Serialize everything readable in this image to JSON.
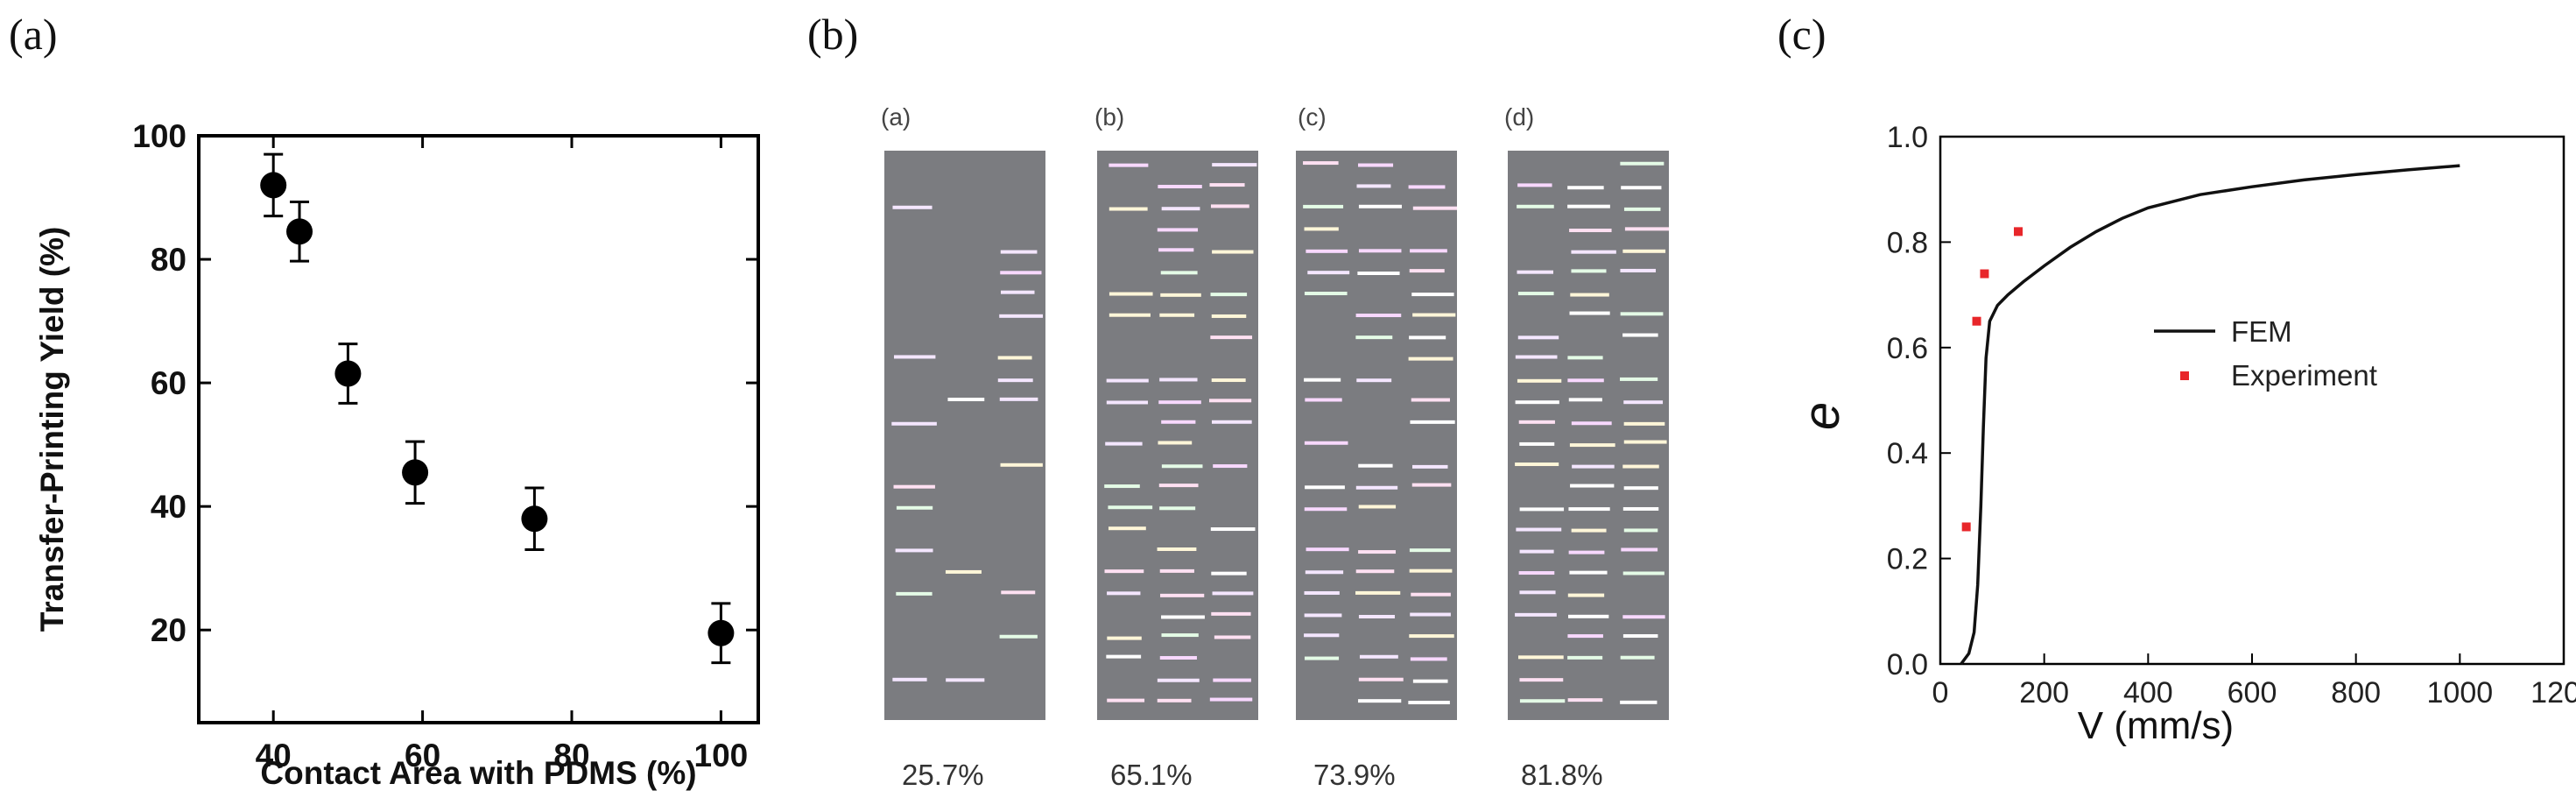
{
  "panel_letters": [
    "(a)",
    "(b)",
    "(c)"
  ],
  "chart_data": [
    {
      "type": "scatter",
      "title": "",
      "xlabel": "Contact Area with PDMS (%)",
      "ylabel": "Transfer-Printing Yield (%)",
      "xlim": [
        30,
        105
      ],
      "ylim": [
        5,
        100
      ],
      "xticks": [
        "40",
        "60",
        "80",
        "100"
      ],
      "yticks": [
        "20",
        "40",
        "60",
        "80",
        "100"
      ],
      "x": [
        40,
        43.5,
        50,
        59,
        75,
        100
      ],
      "y": [
        92,
        84.5,
        61.5,
        45.5,
        38,
        19.5
      ],
      "error": [
        5,
        4.8,
        4.8,
        5,
        5,
        4.8
      ],
      "marker_color": "#000000"
    },
    {
      "type": "line",
      "title": "",
      "xlabel": "V (mm/s)",
      "ylabel": "e",
      "xlim": [
        0,
        1200
      ],
      "ylim": [
        0,
        1.0
      ],
      "xticks": [
        "0",
        "200",
        "400",
        "600",
        "800",
        "1000",
        "1200"
      ],
      "yticks": [
        "0.0",
        "0.2",
        "0.4",
        "0.6",
        "0.8",
        "1.0"
      ],
      "grid": false,
      "legend_position": "center-right",
      "series": [
        {
          "name": "FEM",
          "style": "line",
          "color": "#111111",
          "x": [
            40,
            55,
            65,
            72,
            78,
            83,
            88,
            95,
            110,
            130,
            160,
            200,
            250,
            300,
            350,
            400,
            500,
            600,
            700,
            800,
            900,
            1000
          ],
          "y": [
            0.0,
            0.02,
            0.06,
            0.15,
            0.3,
            0.45,
            0.58,
            0.65,
            0.68,
            0.7,
            0.725,
            0.755,
            0.79,
            0.82,
            0.845,
            0.865,
            0.89,
            0.905,
            0.918,
            0.928,
            0.937,
            0.945
          ]
        },
        {
          "name": "Experiment",
          "style": "scatter",
          "color": "#e8262a",
          "x": [
            50,
            70,
            85,
            150
          ],
          "y": [
            0.26,
            0.65,
            0.74,
            0.82
          ]
        }
      ]
    }
  ],
  "images": {
    "labels": [
      "(a)",
      "(b)",
      "(c)",
      "(d)"
    ],
    "percentages": [
      "25.7%",
      "65.1%",
      "73.9%",
      "81.8%"
    ],
    "coverage": [
      0.257,
      0.651,
      0.739,
      0.818
    ]
  }
}
